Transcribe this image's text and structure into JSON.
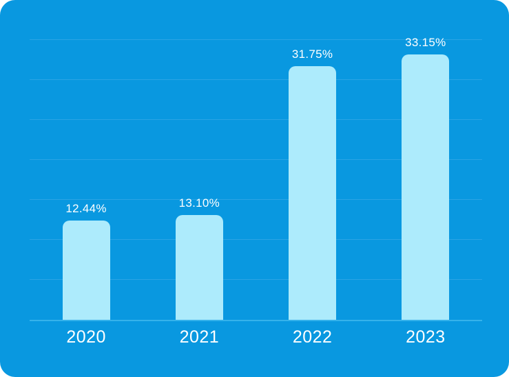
{
  "card": {
    "background": "#0998E0"
  },
  "chart_data": {
    "type": "bar",
    "title": "",
    "xlabel": "",
    "ylabel": "",
    "categories": [
      "2020",
      "2021",
      "2022",
      "2023"
    ],
    "values": [
      12.44,
      13.1,
      31.75,
      33.15
    ],
    "value_labels": [
      "12.44%",
      "13.10%",
      "31.75%",
      "33.15%"
    ],
    "ylim": [
      0,
      35
    ],
    "gridline_step": 5,
    "grid": "horizontal",
    "legend": "none",
    "bar_color": "#ADEBFC",
    "label_color": "#FFFFFF",
    "x_label_color": "#FFFFFF",
    "gridline_color": "#2AA4E5",
    "axisline_color": "#35B2EB"
  }
}
